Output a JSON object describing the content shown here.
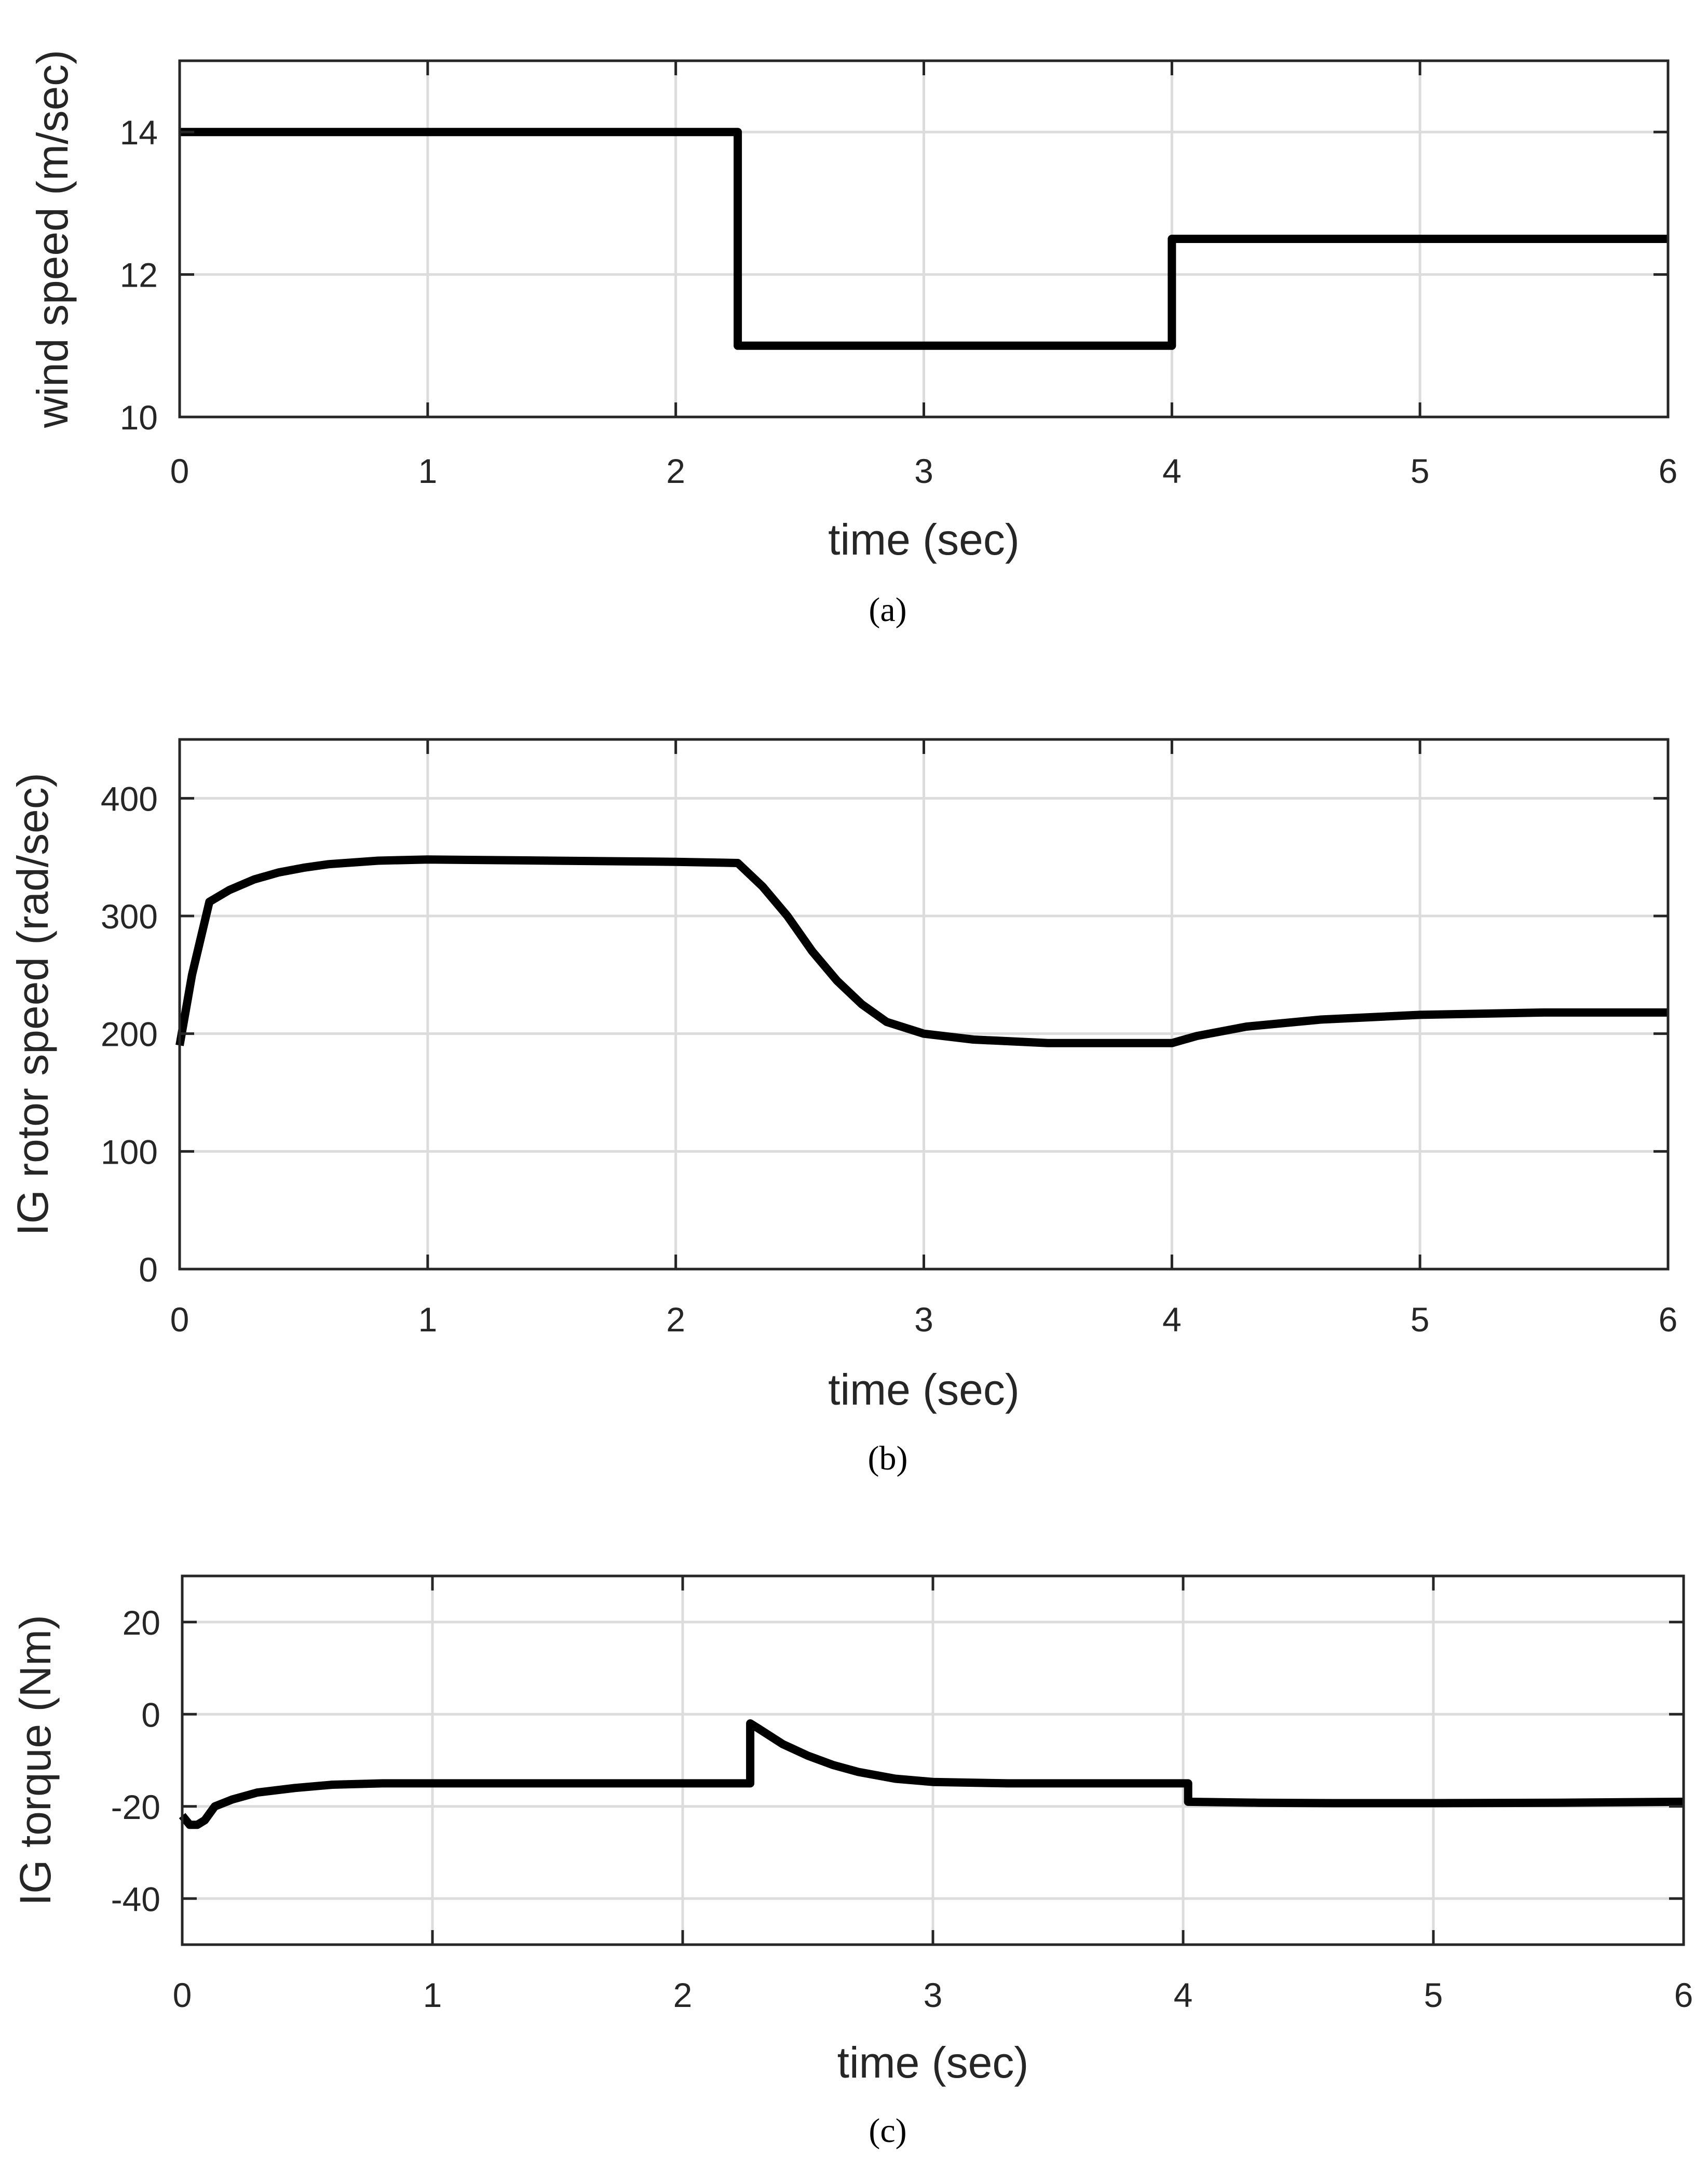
{
  "chart_data": [
    {
      "type": "line",
      "title": "",
      "xlabel": "time (sec)",
      "ylabel": "wind speed (m/sec)",
      "caption": "(a)",
      "xlim": [
        0,
        6
      ],
      "ylim": [
        10,
        15
      ],
      "xticks": [
        0,
        1,
        2,
        3,
        4,
        5,
        6
      ],
      "yticks": [
        10,
        12,
        14
      ],
      "grid": true,
      "series": [
        {
          "name": "wind speed",
          "color": "#000000",
          "x": [
            0,
            2.25,
            2.25,
            4.0,
            4.0,
            6.0
          ],
          "y": [
            14,
            14,
            11,
            11,
            12.5,
            12.5
          ]
        }
      ]
    },
    {
      "type": "line",
      "title": "",
      "xlabel": "time (sec)",
      "ylabel": "IG rotor speed (rad/sec)",
      "caption": "(b)",
      "xlim": [
        0,
        6
      ],
      "ylim": [
        0,
        450
      ],
      "xticks": [
        0,
        1,
        2,
        3,
        4,
        5,
        6
      ],
      "yticks": [
        0,
        100,
        200,
        300,
        400
      ],
      "grid": true,
      "series": [
        {
          "name": "IG rotor speed",
          "color": "#000000",
          "x": [
            0,
            0.05,
            0.12,
            0.2,
            0.3,
            0.4,
            0.5,
            0.6,
            0.8,
            1.0,
            1.5,
            2.0,
            2.25,
            2.35,
            2.45,
            2.55,
            2.65,
            2.75,
            2.85,
            3.0,
            3.2,
            3.5,
            3.8,
            4.0,
            4.1,
            4.3,
            4.6,
            5.0,
            5.5,
            6.0
          ],
          "y": [
            190,
            250,
            312,
            322,
            331,
            337,
            341,
            344,
            347,
            348,
            347,
            346,
            345,
            325,
            300,
            270,
            245,
            225,
            210,
            200,
            195,
            192,
            192,
            192,
            198,
            206,
            212,
            216,
            218,
            218
          ]
        }
      ]
    },
    {
      "type": "line",
      "title": "",
      "xlabel": "time (sec)",
      "ylabel": "IG torque (Nm)",
      "caption": "(c)",
      "xlim": [
        0,
        6
      ],
      "ylim": [
        -50,
        30
      ],
      "xticks": [
        0,
        1,
        2,
        3,
        4,
        5,
        6
      ],
      "yticks": [
        -40,
        -20,
        0,
        20
      ],
      "grid": true,
      "series": [
        {
          "name": "IG torque",
          "color": "#000000",
          "x": [
            0,
            0.03,
            0.06,
            0.09,
            0.13,
            0.2,
            0.3,
            0.45,
            0.6,
            0.8,
            1.0,
            1.5,
            2.0,
            2.27,
            2.27,
            2.3,
            2.4,
            2.5,
            2.6,
            2.7,
            2.85,
            3.0,
            3.3,
            3.6,
            4.02,
            4.02,
            4.3,
            4.6,
            5.0,
            5.5,
            6.0
          ],
          "y": [
            -22,
            -24,
            -24,
            -23,
            -20,
            -18.5,
            -17,
            -16,
            -15.3,
            -15,
            -15,
            -15,
            -15,
            -15,
            -2,
            -3,
            -6.5,
            -9,
            -11,
            -12.5,
            -14,
            -14.7,
            -15,
            -15,
            -15,
            -19,
            -19.2,
            -19.3,
            -19.3,
            -19.2,
            -19
          ]
        }
      ]
    }
  ]
}
